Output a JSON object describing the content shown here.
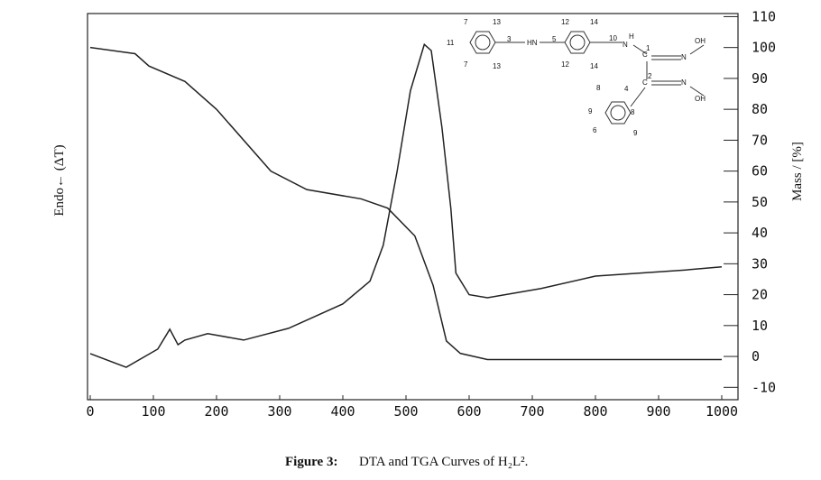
{
  "chart_data": {
    "type": "line",
    "figure_label": "Figure 3:",
    "title": "DTA and TGA Curves of H₂L².",
    "ylabel": "Endo← (ΔT)",
    "y2label": "Mass / [%]",
    "xlim": [
      0,
      1000
    ],
    "xticks": [
      0,
      100,
      200,
      300,
      400,
      500,
      600,
      700,
      800,
      900,
      1000
    ],
    "ylim": [
      -14,
      111
    ],
    "y2lim": [
      -14,
      111
    ],
    "y2ticks": [
      -10,
      0,
      10,
      20,
      30,
      40,
      50,
      60,
      70,
      80,
      90,
      100,
      110
    ],
    "series": [
      {
        "color": "#222222",
        "axis": "y2",
        "x": [
          0,
          71,
          93,
          150,
          200,
          286,
          343,
          429,
          471,
          514,
          543,
          564,
          586,
          629,
          714,
          1000
        ],
        "values": [
          100,
          98,
          94,
          89,
          80,
          60,
          54,
          51,
          48,
          39,
          23,
          5,
          1,
          -1,
          -1,
          -1
        ]
      },
      {
        "color": "#222222",
        "axis": "y",
        "x": [
          0,
          57,
          107,
          126,
          139,
          150,
          186,
          243,
          314,
          400,
          443,
          464,
          486,
          507,
          529,
          540,
          557,
          571,
          579,
          600,
          629,
          714,
          800,
          943,
          1000
        ],
        "values": [
          0.9,
          -3.5,
          2.4,
          8.8,
          3.8,
          5.3,
          7.4,
          5.3,
          9.1,
          17,
          24.4,
          36,
          60,
          86,
          101,
          99,
          74,
          48,
          27,
          20,
          19,
          22,
          26,
          28,
          29
        ]
      }
    ],
    "structure_labels": [
      "7",
      "13",
      "11",
      "3",
      "7",
      "13",
      "HN",
      "12",
      "14",
      "5",
      "10",
      "H",
      "N",
      "12",
      "14",
      "C",
      "1",
      "N",
      "OH",
      "C",
      "2",
      "N",
      "OH",
      "8",
      "4",
      "9",
      "8",
      "6",
      "9"
    ]
  }
}
